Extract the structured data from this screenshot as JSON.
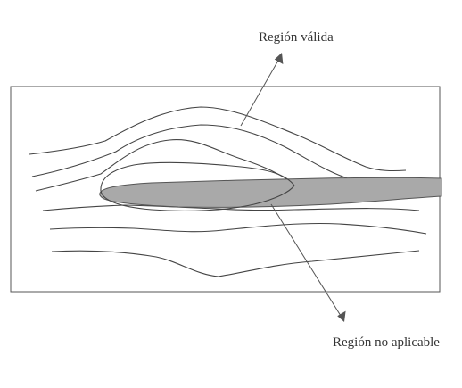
{
  "labels": {
    "valid_region": "Región válida",
    "non_applicable_region": "Región no aplicable"
  }
}
